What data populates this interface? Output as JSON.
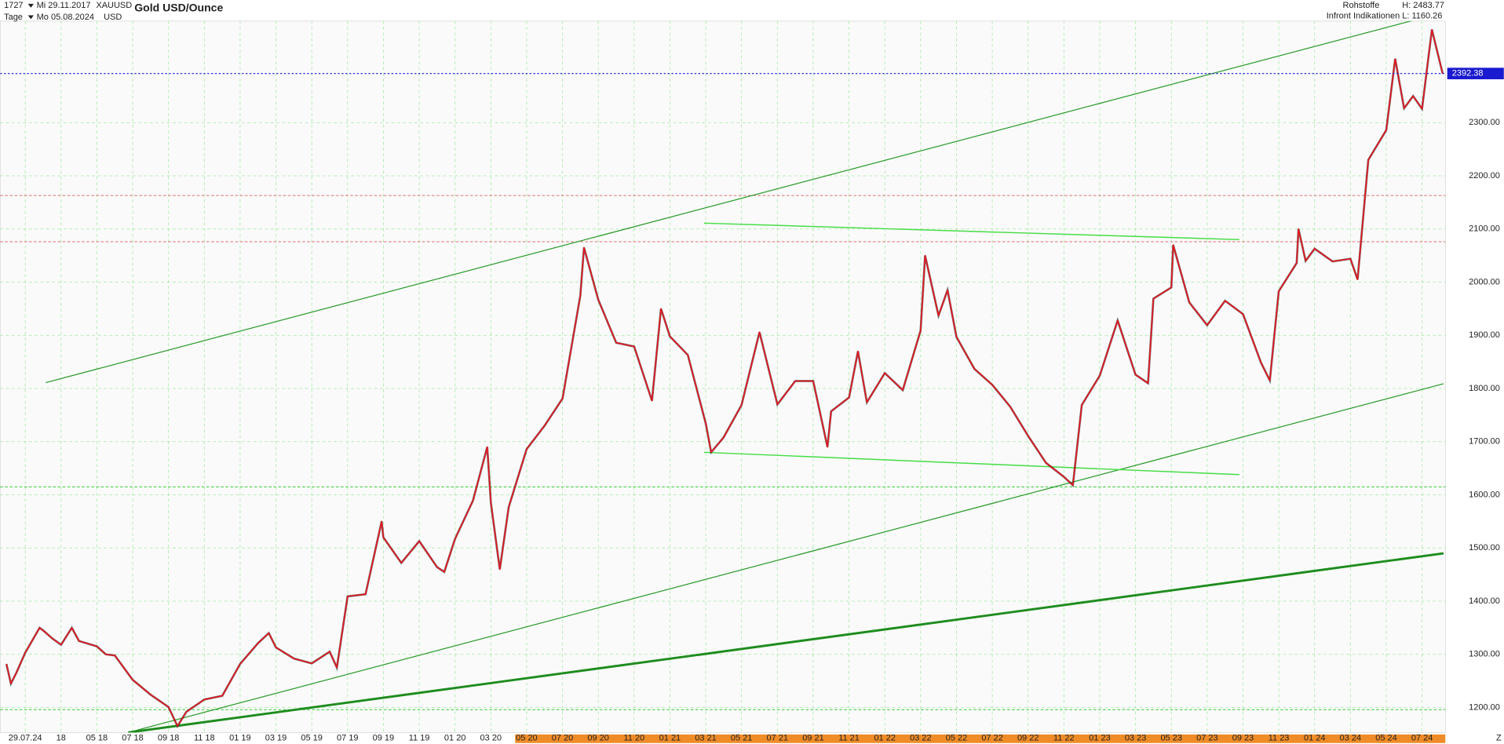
{
  "header": {
    "id": "1727",
    "start_date": "Mi 29.11.2017",
    "interval": "Tage",
    "end_date": "Mo 05.08.2024",
    "symbol": "XAUUSD",
    "currency": "USD",
    "category": "Rohstoffe",
    "source": "Infront Indikationen",
    "high": "H: 2483.77",
    "low": "L: 1160.26",
    "zoom": "Z"
  },
  "chart_data": {
    "type": "line",
    "title": "Gold USD/Ounce",
    "x": [
      0.95,
      1.2,
      1.5,
      2,
      2.8,
      3,
      3.5,
      4,
      4.6,
      5,
      6,
      6.5,
      7,
      8,
      9,
      10,
      10.5,
      11,
      12,
      13,
      14,
      15,
      15.6,
      16,
      17,
      18,
      19,
      19.4,
      20,
      21,
      21.9,
      22,
      23,
      24,
      25,
      25.4,
      26,
      27,
      27.8,
      28,
      28.5,
      29,
      30,
      31,
      32,
      33,
      33.2,
      34,
      35,
      36,
      37,
      37.5,
      38,
      39,
      40,
      40.3,
      41,
      42,
      43,
      44,
      45,
      46,
      46.8,
      47,
      48,
      48.5,
      49,
      50,
      51,
      52,
      52.25,
      53,
      53.5,
      54,
      55,
      56,
      57,
      58,
      59,
      60,
      60.5,
      61,
      62,
      63,
      64,
      64.7,
      65,
      66,
      66.1,
      67,
      68,
      69,
      70,
      71,
      71.5,
      72,
      73,
      73.1,
      73.5,
      74,
      75,
      76,
      76.4,
      77,
      78,
      78.5,
      79,
      79.5,
      80,
      80.55,
      81.15
    ],
    "series": [
      {
        "color": "#e8141e",
        "values": [
          1282,
          1245,
          1265,
          1303,
          1350,
          1345,
          1330,
          1318,
          1350,
          1325,
          1315,
          1300,
          1298,
          1252,
          1224,
          1201,
          1165,
          1192,
          1215,
          1222,
          1282,
          1321,
          1340,
          1313,
          1292,
          1283,
          1305,
          1275,
          1409,
          1413,
          1550,
          1520,
          1472,
          1513,
          1464,
          1455,
          1517,
          1589,
          1690,
          1585,
          1460,
          1577,
          1686,
          1730,
          1781,
          1975,
          2065,
          1967,
          1886,
          1879,
          1777,
          1950,
          1898,
          1863,
          1734,
          1680,
          1708,
          1769,
          1906,
          1770,
          1814,
          1814,
          1690,
          1757,
          1783,
          1870,
          1774,
          1829,
          1797,
          1909,
          2050,
          1937,
          1985,
          1897,
          1837,
          1807,
          1766,
          1711,
          1660,
          1634,
          1618,
          1769,
          1824,
          1928,
          1826,
          1810,
          1969,
          1990,
          2070,
          1962,
          1919,
          1965,
          1940,
          1849,
          1815,
          1983,
          2036,
          2100,
          2040,
          2063,
          2039,
          2044,
          2005,
          2230,
          2286,
          2420,
          2327,
          2350,
          2326,
          2475,
          2392.38
        ]
      }
    ],
    "last_price": 2392.38,
    "xlim": [
      0.6,
      81.3
    ],
    "xticks": [
      {
        "value": 2,
        "label": "29.07.24"
      },
      {
        "value": 4,
        "label": "18"
      },
      {
        "value": 6,
        "label": "05 18"
      },
      {
        "value": 8,
        "label": "07 18"
      },
      {
        "value": 10,
        "label": "09 18"
      },
      {
        "value": 12,
        "label": "11 18"
      },
      {
        "value": 14,
        "label": "01 19"
      },
      {
        "value": 16,
        "label": "03 19"
      },
      {
        "value": 18,
        "label": "05 19"
      },
      {
        "value": 20,
        "label": "07 19"
      },
      {
        "value": 22,
        "label": "09 19"
      },
      {
        "value": 24,
        "label": "11 19"
      },
      {
        "value": 26,
        "label": "01 20"
      },
      {
        "value": 28,
        "label": "03 20"
      },
      {
        "value": 30,
        "label": "05 20"
      },
      {
        "value": 32,
        "label": "07 20"
      },
      {
        "value": 34,
        "label": "09 20"
      },
      {
        "value": 36,
        "label": "11 20"
      },
      {
        "value": 38,
        "label": "01 21"
      },
      {
        "value": 40,
        "label": "03 21"
      },
      {
        "value": 42,
        "label": "05 21"
      },
      {
        "value": 44,
        "label": "07 21"
      },
      {
        "value": 46,
        "label": "09 21"
      },
      {
        "value": 48,
        "label": "11 21"
      },
      {
        "value": 50,
        "label": "01 22"
      },
      {
        "value": 52,
        "label": "03 22"
      },
      {
        "value": 54,
        "label": "05 22"
      },
      {
        "value": 56,
        "label": "07 22"
      },
      {
        "value": 58,
        "label": "09 22"
      },
      {
        "value": 60,
        "label": "11 22"
      },
      {
        "value": 62,
        "label": "01 23"
      },
      {
        "value": 64,
        "label": "03 23"
      },
      {
        "value": 66,
        "label": "05 23"
      },
      {
        "value": 68,
        "label": "07 23"
      },
      {
        "value": 70,
        "label": "09 23"
      },
      {
        "value": 72,
        "label": "11 23"
      },
      {
        "value": 74,
        "label": "01 24"
      },
      {
        "value": 76,
        "label": "03 24"
      },
      {
        "value": 78,
        "label": "05 24"
      },
      {
        "value": 80,
        "label": "07 24"
      }
    ],
    "ylim": [
      1153,
      2491
    ],
    "yticks": [
      {
        "value": 1200,
        "label": "1200.00"
      },
      {
        "value": 1300,
        "label": "1300.00"
      },
      {
        "value": 1400,
        "label": "1400.00"
      },
      {
        "value": 1500,
        "label": "1500.00"
      },
      {
        "value": 1600,
        "label": "1600.00"
      },
      {
        "value": 1700,
        "label": "1700.00"
      },
      {
        "value": 1800,
        "label": "1800.00"
      },
      {
        "value": 1900,
        "label": "1900.00"
      },
      {
        "value": 2000,
        "label": "2000.00"
      },
      {
        "value": 2100,
        "label": "2100.00"
      },
      {
        "value": 2200,
        "label": "2200.00"
      },
      {
        "value": 2300,
        "label": "2300.00"
      }
    ],
    "grid": true,
    "levels": [
      {
        "value": 2163,
        "color": "#e07070"
      },
      {
        "value": 2076,
        "color": "#e07070"
      },
      {
        "value": 1615,
        "color": "#33cc33"
      },
      {
        "value": 1196,
        "color": "#33cc33"
      }
    ],
    "trend_lines": [
      {
        "x": [
          3.14,
          79.8
        ],
        "y": [
          1811,
          2495
        ],
        "color": "#2a9a2a",
        "width": 1
      },
      {
        "x": [
          7.75,
          81.2
        ],
        "y": [
          1153,
          1809
        ],
        "color": "#2a9a2a",
        "width": 1
      },
      {
        "x": [
          7.75,
          81.2
        ],
        "y": [
          1153,
          1490
        ],
        "color": "#1e8c1e",
        "width": 2.4
      },
      {
        "x": [
          39.9,
          69.8
        ],
        "y": [
          2111,
          2080
        ],
        "color": "#44dd44",
        "width": 1.2
      },
      {
        "x": [
          39.9,
          69.8
        ],
        "y": [
          1680,
          1638
        ],
        "color": "#44dd44",
        "width": 1.2
      }
    ]
  }
}
